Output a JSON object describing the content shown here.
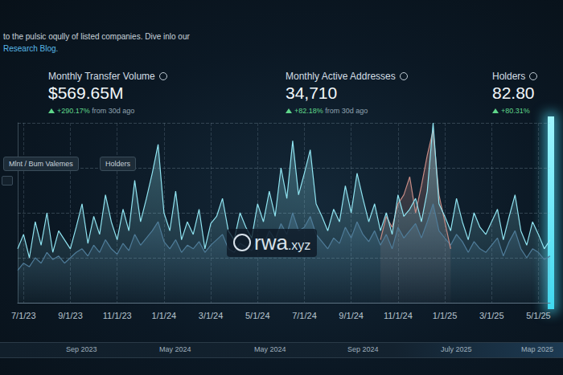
{
  "page": {
    "intro": [
      "to the pulsic oqully of listed companies. Dive inlo our",
      "Research Blog."
    ],
    "stats": [
      {
        "label": "Monthly Transfer Volume",
        "value": "$569.65M",
        "change": "+290.17%",
        "note": "from 30d ago"
      },
      {
        "label": "Monthly Active Addresses",
        "value": "34,710",
        "change": "+82.18%",
        "note": "from 30d ago"
      },
      {
        "label": "Holders",
        "value": "82.80",
        "change": "+80.31%"
      }
    ],
    "buttons": [
      "Mlnt / Bum Valemes",
      "Holders"
    ],
    "watermark": [
      "rwa",
      ".xyz"
    ],
    "slider_labels": [
      "Sep 2023",
      "May 2024",
      "May 2024",
      "Sep 2024",
      "July 2025",
      "Map 2025"
    ]
  },
  "chart_data": {
    "type": "line",
    "categories": [
      null,
      "7/1/23",
      null,
      null,
      null,
      null,
      null,
      null,
      null,
      "9/1/23",
      null,
      null,
      null,
      null,
      null,
      null,
      null,
      "11/1/23",
      null,
      null,
      null,
      null,
      null,
      null,
      null,
      "1/1/24",
      null,
      null,
      null,
      null,
      null,
      null,
      null,
      "3/1/24",
      null,
      null,
      null,
      null,
      null,
      null,
      null,
      "5/1/24",
      null,
      null,
      null,
      null,
      null,
      null,
      null,
      "7/1/24",
      null,
      null,
      null,
      null,
      null,
      null,
      null,
      "9/1/24",
      null,
      null,
      null,
      null,
      null,
      null,
      null,
      "11/1/24",
      null,
      null,
      null,
      null,
      null,
      null,
      null,
      "1/1/25",
      null,
      null,
      null,
      null,
      null,
      null,
      null,
      "3/1/25",
      null,
      null,
      null,
      null,
      null,
      null,
      null,
      "5/1/25",
      null,
      null
    ],
    "series": [
      {
        "type": "area",
        "color": "#4f7c99",
        "values": [
          18,
          22,
          20,
          25,
          22,
          28,
          24,
          26,
          22,
          25,
          28,
          30,
          26,
          32,
          28,
          35,
          30,
          27,
          33,
          29,
          38,
          32,
          36,
          40,
          45,
          34,
          30,
          35,
          28,
          32,
          30,
          34,
          28,
          32,
          35,
          38,
          30,
          28,
          33,
          31,
          29,
          36,
          32,
          40,
          35,
          44,
          38,
          50,
          40,
          42,
          48,
          38,
          34,
          30,
          36,
          33,
          42,
          36,
          45,
          38,
          34,
          40,
          32,
          38,
          30,
          42,
          36,
          40,
          44,
          36,
          45,
          55,
          40,
          36,
          32,
          38,
          34,
          28,
          34,
          30,
          28,
          32,
          36,
          26,
          34,
          40,
          30,
          25,
          30,
          28,
          24,
          26
        ]
      },
      {
        "type": "area",
        "color": "#c48a84",
        "values": [
          null,
          null,
          null,
          null,
          null,
          null,
          null,
          null,
          null,
          null,
          null,
          null,
          null,
          null,
          null,
          null,
          null,
          null,
          null,
          null,
          null,
          null,
          null,
          null,
          null,
          null,
          null,
          null,
          null,
          null,
          null,
          null,
          null,
          null,
          null,
          null,
          null,
          null,
          null,
          null,
          null,
          null,
          null,
          null,
          null,
          null,
          null,
          null,
          null,
          null,
          null,
          null,
          null,
          null,
          null,
          null,
          null,
          null,
          null,
          null,
          null,
          null,
          35,
          48,
          42,
          55,
          60,
          70,
          50,
          65,
          82,
          96,
          60,
          45,
          30,
          null,
          null,
          null,
          null,
          null,
          null,
          null,
          null,
          null,
          null,
          null,
          null,
          null,
          null,
          null,
          null,
          null
        ]
      },
      {
        "type": "area",
        "color": "#8fe3f0",
        "values": [
          30,
          38,
          25,
          45,
          32,
          50,
          28,
          40,
          35,
          30,
          42,
          55,
          33,
          48,
          38,
          60,
          45,
          35,
          52,
          40,
          68,
          45,
          58,
          72,
          88,
          50,
          40,
          62,
          35,
          45,
          38,
          52,
          30,
          44,
          48,
          58,
          40,
          35,
          50,
          42,
          36,
          55,
          45,
          62,
          48,
          75,
          58,
          90,
          60,
          72,
          85,
          55,
          48,
          40,
          52,
          45,
          65,
          50,
          72,
          58,
          45,
          55,
          40,
          50,
          38,
          60,
          48,
          52,
          58,
          45,
          62,
          100,
          55,
          48,
          40,
          58,
          45,
          35,
          50,
          42,
          38,
          45,
          52,
          35,
          48,
          60,
          40,
          32,
          45,
          38,
          30,
          35
        ]
      }
    ],
    "ylim": [
      0,
      100
    ],
    "yticks": [
      0,
      25,
      50,
      75,
      100
    ],
    "grid": true,
    "tick_labels": "x"
  }
}
